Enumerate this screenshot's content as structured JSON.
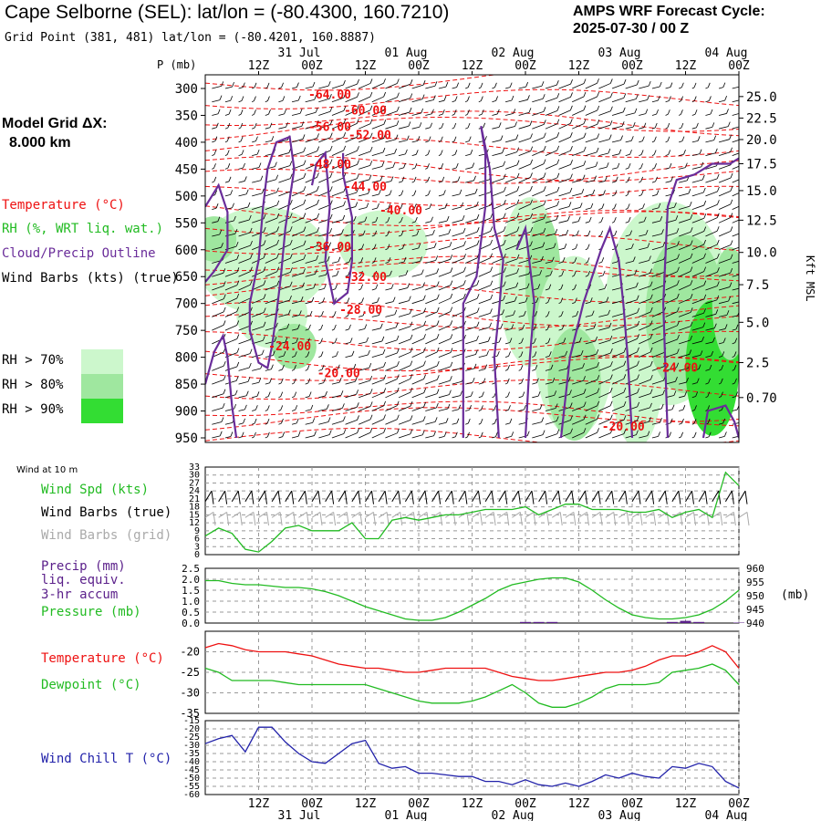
{
  "header": {
    "title": "Cape Selborne (SEL):  lat/lon = (-80.4300, 160.7210)",
    "subtitle": "Grid Point (381, 481) lat/lon = (-80.4201, 160.8887)",
    "cycle_line1": "AMPS WRF Forecast Cycle:",
    "cycle_line2": "2025-07-30 / 00  Z"
  },
  "left_legend": {
    "grid_label": "Model Grid ΔX:",
    "grid_value": "8.000 km",
    "temperature": "Temperature (°C)",
    "rh": "RH (%, WRT liq. wat.)",
    "cloud": "Cloud/Precip Outline",
    "wind": "Wind Barbs (kts) (true)",
    "rh70": "RH > 70%",
    "rh80": "RH > 80%",
    "rh90": "RH > 90%",
    "rh_colors": [
      "#ccf7cc",
      "#9fe79f",
      "#33dd33"
    ]
  },
  "time_axis": {
    "top_ticks": [
      "12Z",
      "00Z",
      "12Z",
      "00Z",
      "12Z",
      "00Z",
      "12Z",
      "00Z",
      "12Z",
      "00Z"
    ],
    "dates": [
      "31 Jul",
      "01 Aug",
      "02 Aug",
      "03 Aug",
      "04 Aug"
    ],
    "tick_hours": [
      12,
      24,
      36,
      48,
      60,
      72,
      84,
      96,
      108,
      120
    ],
    "date_hours": [
      24,
      48,
      72,
      96,
      120
    ],
    "range_hours": [
      0,
      120
    ]
  },
  "colors": {
    "temperature": "#ee1111",
    "cloud": "#6a2d9a",
    "wind": "#000000",
    "wind_grid": "#aaaaaa",
    "speed": "#22bb22",
    "pressure": "#22bb22",
    "precip": "#5a1f8a",
    "dewpoint": "#22bb22",
    "windchill": "#2222aa"
  },
  "chart_data": [
    {
      "type": "heatmap",
      "name": "cross-section",
      "y_label": "P (mb)",
      "right_axis_label": "Kft MSL",
      "pressure_levels": [
        300,
        350,
        400,
        450,
        500,
        550,
        600,
        650,
        700,
        750,
        800,
        850,
        900,
        950
      ],
      "height_kft": [
        "25.0",
        "22.5",
        "20.0",
        "17.5",
        "15.0",
        "12.5",
        "10.0",
        "7.5",
        "5.0",
        "2.5",
        "0.70"
      ],
      "height_kft_pressure": [
        315,
        355,
        395,
        440,
        490,
        545,
        605,
        665,
        735,
        810,
        875,
        955
      ],
      "temperature_labels": [
        {
          "text": "-64.00",
          "hour": 28,
          "p": 312
        },
        {
          "text": "-60.00",
          "hour": 36,
          "p": 342
        },
        {
          "text": "-56.00",
          "hour": 28,
          "p": 372
        },
        {
          "text": "-52.00",
          "hour": 37,
          "p": 387
        },
        {
          "text": "-48.00",
          "hour": 28,
          "p": 442
        },
        {
          "text": "-44.00",
          "hour": 36,
          "p": 483
        },
        {
          "text": "-40.00",
          "hour": 44,
          "p": 527
        },
        {
          "text": "-36.00",
          "hour": 28,
          "p": 595
        },
        {
          "text": "-32.00",
          "hour": 36,
          "p": 651
        },
        {
          "text": "-28.00",
          "hour": 35,
          "p": 712
        },
        {
          "text": "-24.00",
          "hour": 19,
          "p": 780
        },
        {
          "text": "-20.00",
          "hour": 30,
          "p": 830
        },
        {
          "text": "-24.00",
          "hour": 106,
          "p": 820
        },
        {
          "text": "-20.00",
          "hour": 94,
          "p": 930
        }
      ]
    },
    {
      "type": "line",
      "name": "surface-wind",
      "label_small": "Wind at 10 m",
      "legend": [
        "Wind Spd (kts)",
        "Wind Barbs (true)",
        "Wind Barbs (grid)"
      ],
      "yticks": [
        0,
        3,
        6,
        9,
        12,
        15,
        18,
        21,
        24,
        27,
        30,
        33
      ],
      "ylim": [
        0,
        33
      ],
      "x_hours": [
        0,
        3,
        6,
        9,
        12,
        15,
        18,
        21,
        24,
        27,
        30,
        33,
        36,
        39,
        42,
        45,
        48,
        51,
        54,
        57,
        60,
        63,
        66,
        69,
        72,
        75,
        78,
        81,
        84,
        87,
        90,
        93,
        96,
        99,
        102,
        105,
        108,
        111,
        114,
        117,
        120
      ],
      "series": [
        {
          "name": "Wind Spd (kts)",
          "values": [
            7,
            10,
            8,
            2,
            1,
            5,
            10,
            11,
            9,
            9,
            9,
            12,
            6,
            6,
            13,
            14,
            13,
            14,
            15,
            15,
            16,
            17,
            17,
            17,
            18,
            15,
            17,
            19,
            19,
            17,
            17,
            17,
            16,
            16,
            17,
            14,
            16,
            17,
            14,
            31,
            26
          ]
        }
      ]
    },
    {
      "type": "line",
      "name": "precip-pressure",
      "legend": [
        "Precip (mm)",
        "liq. equiv.",
        "3-hr accum",
        "Pressure (mb)"
      ],
      "left_yticks": [
        "0.0",
        "0.5",
        "1.0",
        "1.5",
        "2.0",
        "2.5"
      ],
      "right_yticks": [
        "940",
        "945",
        "950",
        "955",
        "960"
      ],
      "right_unit": "(mb)",
      "x_hours": [
        0,
        3,
        6,
        9,
        12,
        15,
        18,
        21,
        24,
        27,
        30,
        33,
        36,
        39,
        42,
        45,
        48,
        51,
        54,
        57,
        60,
        63,
        66,
        69,
        72,
        75,
        78,
        81,
        84,
        87,
        90,
        93,
        96,
        99,
        102,
        105,
        108,
        111,
        114,
        117,
        120
      ],
      "pressure_mb": [
        955.5,
        955.5,
        954.5,
        954,
        954,
        953.5,
        953,
        953,
        952.5,
        951.5,
        950,
        948,
        946,
        944.5,
        943,
        941.5,
        941,
        941,
        942,
        944,
        946.5,
        949,
        952,
        954,
        955,
        956,
        956.5,
        956.5,
        955,
        952,
        948.5,
        945.5,
        943,
        942,
        941.5,
        941.5,
        942,
        943,
        945,
        948,
        952
      ],
      "precip_mm": [
        0,
        0,
        0,
        0,
        0,
        0,
        0,
        0,
        0,
        0,
        0,
        0,
        0,
        0,
        0,
        0,
        0,
        0,
        0,
        0,
        0,
        0,
        0,
        0,
        0.05,
        0.05,
        0.05,
        0,
        0,
        0,
        0,
        0,
        0,
        0,
        0,
        0.05,
        0.1,
        0.05,
        0,
        0,
        0.02
      ]
    },
    {
      "type": "line",
      "name": "temperature-dewpoint",
      "legend": [
        "Temperature (°C)",
        "Dewpoint (°C)"
      ],
      "yticks": [
        -35,
        -30,
        -25,
        -20
      ],
      "ylim": [
        -35,
        -15
      ],
      "x_hours": [
        0,
        3,
        6,
        9,
        12,
        15,
        18,
        21,
        24,
        27,
        30,
        33,
        36,
        39,
        42,
        45,
        48,
        51,
        54,
        57,
        60,
        63,
        66,
        69,
        72,
        75,
        78,
        81,
        84,
        87,
        90,
        93,
        96,
        99,
        102,
        105,
        108,
        111,
        114,
        117,
        120
      ],
      "series": [
        {
          "name": "Temperature (°C)",
          "values": [
            -19,
            -18,
            -18.5,
            -19.5,
            -20,
            -20,
            -20,
            -20.5,
            -21,
            -22,
            -23,
            -23.5,
            -24,
            -24,
            -24.5,
            -25,
            -25,
            -24.5,
            -24,
            -24,
            -24,
            -24,
            -25,
            -26,
            -26.5,
            -27,
            -27,
            -26.5,
            -26,
            -25.5,
            -25,
            -25,
            -24.5,
            -23.5,
            -22,
            -21,
            -21,
            -20,
            -18.5,
            -20,
            -24
          ]
        },
        {
          "name": "Dewpoint (°C)",
          "values": [
            -24,
            -25,
            -27,
            -27,
            -27,
            -27,
            -27.5,
            -28,
            -28,
            -28,
            -28,
            -28,
            -28,
            -29,
            -30,
            -31,
            -32,
            -32.5,
            -32.5,
            -32.5,
            -32,
            -31,
            -29.5,
            -28,
            -30,
            -32.5,
            -33.5,
            -33.5,
            -32.5,
            -31,
            -29,
            -28,
            -28,
            -28,
            -27.5,
            -25,
            -24.5,
            -24,
            -23,
            -24.5,
            -28
          ]
        }
      ]
    },
    {
      "type": "line",
      "name": "wind-chill",
      "legend": [
        "Wind Chill T (°C)"
      ],
      "yticks": [
        -60,
        -55,
        -50,
        -45,
        -40,
        -35,
        -30,
        -25,
        -20,
        -15
      ],
      "ylim": [
        -60,
        -15
      ],
      "x_hours": [
        0,
        3,
        6,
        9,
        12,
        15,
        18,
        21,
        24,
        27,
        30,
        33,
        36,
        39,
        42,
        45,
        48,
        51,
        54,
        57,
        60,
        63,
        66,
        69,
        72,
        75,
        78,
        81,
        84,
        87,
        90,
        93,
        96,
        99,
        102,
        105,
        108,
        111,
        114,
        117,
        120
      ],
      "series": [
        {
          "name": "Wind Chill T (°C)",
          "values": [
            -29,
            -26,
            -24,
            -34,
            -19,
            -19,
            -28,
            -35,
            -40,
            -41,
            -35,
            -29,
            -27,
            -41,
            -44,
            -43,
            -47,
            -47,
            -48,
            -49,
            -49,
            -52,
            -52,
            -54,
            -51,
            -54,
            -55,
            -53,
            -55,
            -52,
            -48,
            -50,
            -47,
            -49,
            -50,
            -43,
            -44,
            -41,
            -43,
            -52,
            -56
          ]
        }
      ]
    }
  ]
}
